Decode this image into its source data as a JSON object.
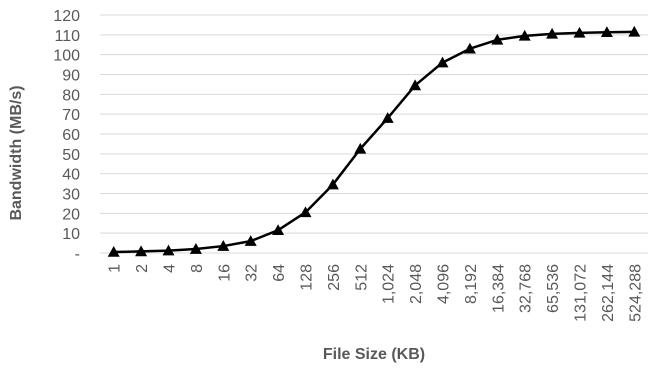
{
  "chart_data": {
    "type": "line",
    "xlabel": "File Size (KB)",
    "ylabel": "Bandwidth (MB/s)",
    "x_scale": "log2",
    "categories": [
      "1",
      "2",
      "4",
      "8",
      "16",
      "32",
      "64",
      "128",
      "256",
      "512",
      "1,024",
      "2,048",
      "4,096",
      "8,192",
      "16,384",
      "32,768",
      "65,536",
      "131,072",
      "262,144",
      "524,288"
    ],
    "series": [
      {
        "marker": "triangle",
        "values": [
          0.5,
          0.8,
          1.2,
          2,
          3.5,
          6,
          11.5,
          20.5,
          34.5,
          52.5,
          68,
          84.5,
          96,
          103,
          107.5,
          109.5,
          110.5,
          111,
          111.3,
          111.5
        ]
      }
    ],
    "ylim": [
      0,
      120
    ],
    "y_ticks": [
      0,
      10,
      20,
      30,
      40,
      50,
      60,
      70,
      80,
      90,
      100,
      110,
      120
    ],
    "y_tick_labels": [
      "-",
      "10",
      "20",
      "30",
      "40",
      "50",
      "60",
      "70",
      "80",
      "90",
      "100",
      "110",
      "120"
    ],
    "grid": true,
    "legend": "none",
    "colors": {
      "line": "#000000",
      "marker": "#000000",
      "grid": "#d9d9d9",
      "text": "#595959"
    }
  }
}
